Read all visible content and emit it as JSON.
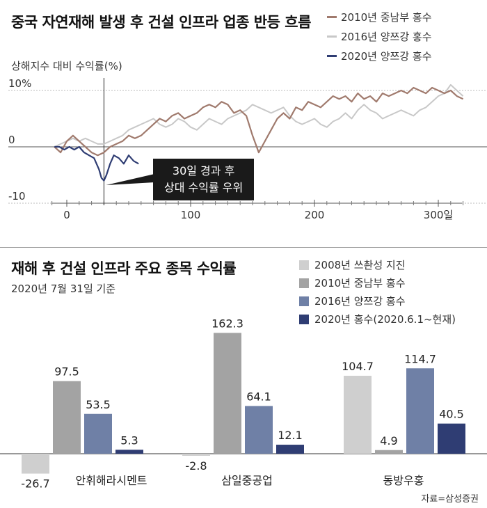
{
  "top": {
    "title": "중국 자연재해 발생 후 건설 인프라 업종 반등 흐름",
    "ylabel": "상해지수 대비 수익률(%)",
    "legend": [
      {
        "label": "2010년 중남부 홍수",
        "color": "#a07a6d"
      },
      {
        "label": "2016년 양쯔강 홍수",
        "color": "#c8c8c8"
      },
      {
        "label": "2020년 양쯔강 홍수",
        "color": "#2f3d73"
      }
    ],
    "annotation": {
      "line1": "30일 경과 후",
      "line2": "상대 수익률 우위"
    }
  },
  "bottom": {
    "title": "재해 후 건설 인프라 주요 종목 수익률",
    "subtitle": "2020년 7월 31일 기준",
    "legend": [
      {
        "label": "2008년 쓰촨성 지진",
        "color": "#cfcfcf"
      },
      {
        "label": "2010년 중남부 홍수",
        "color": "#a3a3a3"
      },
      {
        "label": "2016년 양쯔강 홍수",
        "color": "#6f80a6"
      },
      {
        "label": "2020년 홍수(2020.6.1~현재)",
        "color": "#2f3d73"
      }
    ],
    "source": "자료=삼성증권"
  },
  "chart_data": [
    {
      "type": "line",
      "title": "중국 자연재해 발생 후 건설 인프라 업종 반등 흐름",
      "ylabel": "상해지수 대비 수익률(%)",
      "xlabel": "",
      "x_ticks": [
        "0",
        "100",
        "200",
        "300일"
      ],
      "x_tick_values": [
        0,
        100,
        200,
        300
      ],
      "y_ticks": [
        "10%",
        "0",
        "-10"
      ],
      "y_tick_values": [
        10,
        0,
        -10
      ],
      "xlim": [
        -10,
        320
      ],
      "ylim": [
        -10,
        11
      ],
      "marker_x": 30,
      "series": [
        {
          "name": "2010년 중남부 홍수",
          "color": "#a07a6d",
          "x": [
            -10,
            -5,
            0,
            5,
            10,
            15,
            20,
            25,
            30,
            35,
            40,
            45,
            50,
            55,
            60,
            65,
            70,
            75,
            80,
            85,
            90,
            95,
            100,
            105,
            110,
            115,
            120,
            125,
            130,
            135,
            140,
            145,
            150,
            155,
            160,
            165,
            170,
            175,
            180,
            185,
            190,
            195,
            200,
            205,
            210,
            215,
            220,
            225,
            230,
            235,
            240,
            245,
            250,
            255,
            260,
            265,
            270,
            275,
            280,
            285,
            290,
            295,
            300,
            305,
            310,
            315,
            320
          ],
          "values": [
            0,
            -1,
            1,
            2,
            1,
            0,
            -1,
            -1.5,
            -1,
            0,
            0.5,
            1,
            2,
            1.5,
            2,
            3,
            4,
            5,
            4.5,
            5.5,
            6,
            5,
            5.5,
            6,
            7,
            7.5,
            7,
            8,
            7.5,
            6,
            6.5,
            5.5,
            2,
            -1,
            1,
            3,
            5,
            6,
            5,
            7,
            6.5,
            8,
            7.5,
            7,
            8,
            9,
            8.5,
            9,
            8,
            9.5,
            8.5,
            9,
            8,
            9.5,
            9,
            9.5,
            10,
            9.5,
            10.5,
            10,
            9.5,
            10.5,
            10,
            9.5,
            10,
            9,
            8.5
          ]
        },
        {
          "name": "2016년 양쯔강 홍수",
          "color": "#c8c8c8",
          "x": [
            -10,
            -5,
            0,
            5,
            10,
            15,
            20,
            25,
            30,
            35,
            40,
            45,
            50,
            55,
            60,
            65,
            70,
            75,
            80,
            85,
            90,
            95,
            100,
            105,
            110,
            115,
            120,
            125,
            130,
            135,
            140,
            145,
            150,
            155,
            160,
            165,
            170,
            175,
            180,
            185,
            190,
            195,
            200,
            205,
            210,
            215,
            220,
            225,
            230,
            235,
            240,
            245,
            250,
            255,
            260,
            265,
            270,
            275,
            280,
            285,
            290,
            295,
            300,
            305,
            310,
            315,
            320
          ],
          "values": [
            0,
            0.5,
            1,
            1.5,
            1,
            1.5,
            1,
            0.5,
            0.5,
            1,
            1.5,
            2,
            3,
            3.5,
            4,
            4.5,
            5,
            4,
            3.5,
            4,
            5,
            4.5,
            3.5,
            3,
            4,
            5,
            4.5,
            4,
            5,
            5.5,
            6,
            6.5,
            7.5,
            7,
            6.5,
            6,
            6.5,
            7,
            5.5,
            4.5,
            4,
            4.5,
            5,
            4,
            3.5,
            4.5,
            5,
            6,
            5,
            6.5,
            7.5,
            6.5,
            6,
            5,
            5.5,
            6,
            6.5,
            6,
            5.5,
            6.5,
            7,
            8,
            9,
            9.5,
            11,
            10,
            9
          ]
        },
        {
          "name": "2020년 양쯔강 홍수",
          "color": "#2f3d73",
          "x": [
            -10,
            -6,
            -2,
            2,
            6,
            10,
            14,
            18,
            22,
            26,
            28,
            30,
            32,
            35,
            38,
            42,
            46,
            50,
            54,
            58
          ],
          "values": [
            0,
            0,
            -0.5,
            0,
            -0.5,
            0,
            -1,
            -1.5,
            -2,
            -4,
            -5.5,
            -6,
            -5,
            -3,
            -1.5,
            -2,
            -3,
            -1.5,
            -2.5,
            -3
          ]
        }
      ]
    },
    {
      "type": "bar",
      "title": "재해 후 건설 인프라 주요 종목 수익률",
      "subtitle": "2020년 7월 31일 기준",
      "categories": [
        "안휘해라시멘트",
        "삼일중공업",
        "동방우홍"
      ],
      "series": [
        {
          "name": "2008년 쓰촨성 지진",
          "color": "#cfcfcf",
          "values": [
            -26.7,
            -2.8,
            104.7
          ],
          "labels": [
            "-26.7",
            "-2.8",
            "104.7"
          ]
        },
        {
          "name": "2010년 중남부 홍수",
          "color": "#a3a3a3",
          "values": [
            97.5,
            162.3,
            4.9
          ],
          "labels": [
            "97.5",
            "162.3",
            "4.9"
          ]
        },
        {
          "name": "2016년 양쯔강 홍수",
          "color": "#6f80a6",
          "values": [
            53.5,
            64.1,
            114.7
          ],
          "labels": [
            "53.5",
            "64.1",
            "114.7"
          ]
        },
        {
          "name": "2020년 홍수(2020.6.1~현재)",
          "color": "#2f3d73",
          "values": [
            5.3,
            12.1,
            40.5
          ],
          "labels": [
            "5.3",
            "12.1",
            "40.5"
          ]
        }
      ],
      "ylim": [
        -30,
        170
      ]
    }
  ]
}
